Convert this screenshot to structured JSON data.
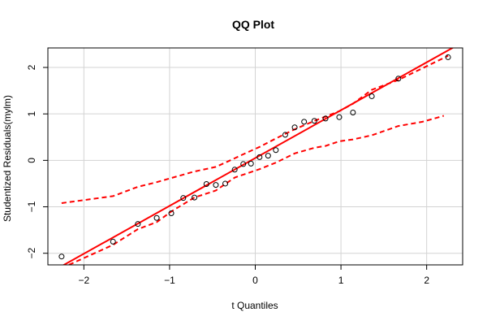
{
  "chart_data": {
    "type": "scatter",
    "title": "QQ Plot",
    "xlabel": "t Quantiles",
    "ylabel": "Studentized Residuals(mylm)",
    "xlim": [
      -2.42,
      2.42
    ],
    "ylim": [
      -2.25,
      2.42
    ],
    "x_ticks": [
      -2,
      -1,
      0,
      1,
      2
    ],
    "y_ticks": [
      -2,
      -1,
      0,
      1,
      2
    ],
    "x_tick_labels": [
      "−2",
      "−1",
      "0",
      "1",
      "2"
    ],
    "y_tick_labels": [
      "−2",
      "−1",
      "0",
      "1",
      "2"
    ],
    "grid": true,
    "colors": {
      "points": "#000000",
      "lines": "#ff0000",
      "grid": "#d3d3d3"
    },
    "points": [
      {
        "x": -2.26,
        "y": -2.07
      },
      {
        "x": -1.66,
        "y": -1.75
      },
      {
        "x": -1.37,
        "y": -1.37
      },
      {
        "x": -1.15,
        "y": -1.24
      },
      {
        "x": -0.98,
        "y": -1.14
      },
      {
        "x": -0.84,
        "y": -0.81
      },
      {
        "x": -0.71,
        "y": -0.8
      },
      {
        "x": -0.57,
        "y": -0.51
      },
      {
        "x": -0.46,
        "y": -0.53
      },
      {
        "x": -0.35,
        "y": -0.5
      },
      {
        "x": -0.24,
        "y": -0.2
      },
      {
        "x": -0.14,
        "y": -0.08
      },
      {
        "x": -0.05,
        "y": -0.07
      },
      {
        "x": 0.05,
        "y": 0.07
      },
      {
        "x": 0.15,
        "y": 0.1
      },
      {
        "x": 0.24,
        "y": 0.22
      },
      {
        "x": 0.35,
        "y": 0.55
      },
      {
        "x": 0.46,
        "y": 0.71
      },
      {
        "x": 0.57,
        "y": 0.83
      },
      {
        "x": 0.69,
        "y": 0.85
      },
      {
        "x": 0.82,
        "y": 0.9
      },
      {
        "x": 0.98,
        "y": 0.93
      },
      {
        "x": 1.14,
        "y": 1.03
      },
      {
        "x": 1.36,
        "y": 1.38
      },
      {
        "x": 1.67,
        "y": 1.76
      },
      {
        "x": 2.25,
        "y": 2.22
      }
    ],
    "reference_line": {
      "intercept": 0.05,
      "slope": 1.03
    },
    "upper_band": [
      [
        -2.26,
        -0.92
      ],
      [
        -1.66,
        -0.77
      ],
      [
        -1.37,
        -0.57
      ],
      [
        -1.15,
        -0.47
      ],
      [
        -0.98,
        -0.38
      ],
      [
        -0.71,
        -0.24
      ],
      [
        -0.46,
        -0.14
      ],
      [
        -0.35,
        -0.05
      ],
      [
        -0.14,
        0.13
      ],
      [
        0.05,
        0.29
      ],
      [
        0.24,
        0.47
      ],
      [
        0.46,
        0.67
      ],
      [
        0.69,
        0.85
      ],
      [
        0.98,
        1.06
      ],
      [
        1.14,
        1.22
      ],
      [
        1.36,
        1.52
      ],
      [
        1.67,
        1.73
      ],
      [
        2.25,
        2.25
      ]
    ],
    "lower_band": [
      [
        -2.26,
        -2.32
      ],
      [
        -1.66,
        -1.82
      ],
      [
        -1.37,
        -1.48
      ],
      [
        -1.15,
        -1.33
      ],
      [
        -0.98,
        -1.1
      ],
      [
        -0.71,
        -0.8
      ],
      [
        -0.46,
        -0.65
      ],
      [
        -0.24,
        -0.37
      ],
      [
        0.05,
        -0.19
      ],
      [
        0.24,
        -0.05
      ],
      [
        0.46,
        0.15
      ],
      [
        0.69,
        0.27
      ],
      [
        0.82,
        0.31
      ],
      [
        0.98,
        0.41
      ],
      [
        1.14,
        0.45
      ],
      [
        1.36,
        0.54
      ],
      [
        1.67,
        0.74
      ],
      [
        1.95,
        0.83
      ],
      [
        2.2,
        0.96
      ]
    ]
  }
}
